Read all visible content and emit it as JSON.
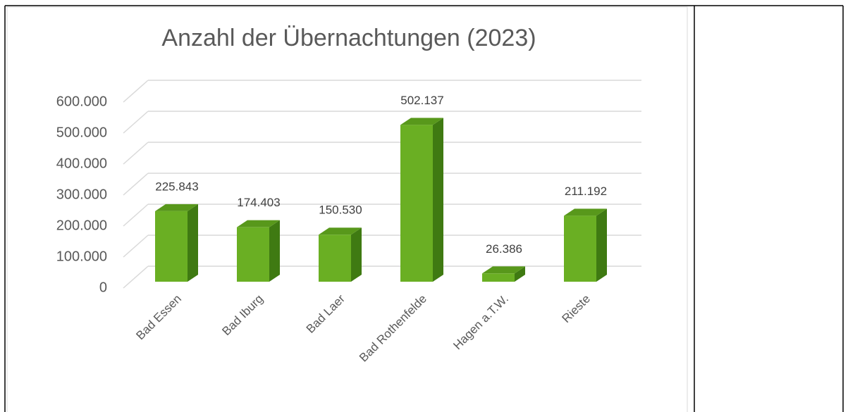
{
  "chart_data": {
    "type": "bar",
    "title": "Anzahl der Übernachtungen (2023)",
    "categories": [
      "Bad Essen",
      "Bad Iburg",
      "Bad Laer",
      "Bad Rothenfelde",
      "Hagen a.T.W.",
      "Rieste"
    ],
    "values": [
      225843,
      174403,
      150530,
      502137,
      26386,
      211192
    ],
    "value_labels": [
      "225.843",
      "174.403",
      "150.530",
      "502.137",
      "26.386",
      "211.192"
    ],
    "color": "#6aaf23",
    "ylim": [
      0,
      600000
    ],
    "yticks": [
      0,
      {
        "value": 100000,
        "label": "100.000"
      },
      {
        "value": 200000,
        "label": "200.000"
      },
      {
        "value": 300000,
        "label": "300.000"
      },
      {
        "value": 400000,
        "label": "400.000"
      },
      {
        "value": 500000,
        "label": "500.000"
      },
      {
        "value": 600000,
        "label": "600.000"
      }
    ],
    "grid": true
  }
}
